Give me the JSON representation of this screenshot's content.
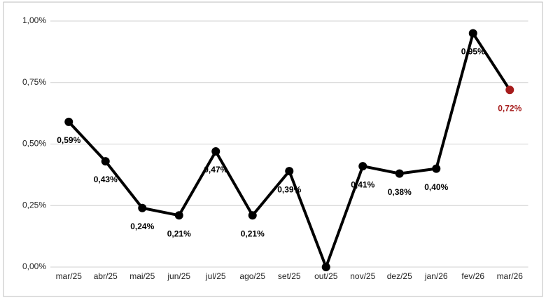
{
  "chart_data": {
    "type": "line",
    "categories": [
      "mar/25",
      "abr/25",
      "mai/25",
      "jun/25",
      "jul/25",
      "ago/25",
      "set/25",
      "out/25",
      "nov/25",
      "dez/25",
      "jan/26",
      "fev/26",
      "mar/26"
    ],
    "series": [
      {
        "color": "#000000",
        "values": [
          0.59,
          0.43,
          0.24,
          0.21,
          0.47,
          0.21,
          0.39,
          0,
          0.41,
          0.38,
          0.4,
          0.95,
          0.72
        ],
        "value_labels": [
          "0,59%",
          "0,43%",
          "0,24%",
          "0,21%",
          "0,47%",
          "0,21%",
          "0,39%",
          null,
          "0,41%",
          "0,38%",
          "0,40%",
          "0,95%",
          "0,72%"
        ],
        "point_colors": [
          "#000000",
          "#000000",
          "#000000",
          "#000000",
          "#000000",
          "#000000",
          "#000000",
          "#000000",
          "#000000",
          "#000000",
          "#000000",
          "#000000",
          "#a61c1c"
        ]
      }
    ],
    "ylim": [
      0,
      1
    ],
    "yticks": [
      {
        "value": 0,
        "label": "0,00%"
      },
      {
        "value": 0.25,
        "label": "0,25%"
      },
      {
        "value": 0.5,
        "label": "0,50%"
      },
      {
        "value": 0.75,
        "label": "0,75%"
      },
      {
        "value": 1,
        "label": "1,00%"
      }
    ],
    "grid": true
  }
}
